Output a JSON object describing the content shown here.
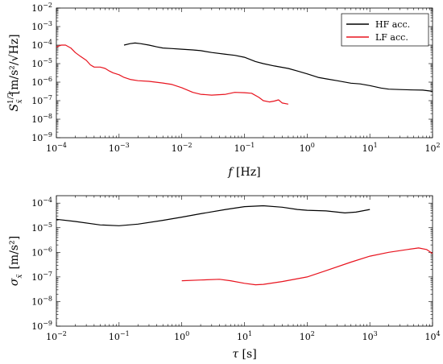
{
  "chart_data": [
    {
      "type": "line",
      "xscale": "log",
      "yscale": "log",
      "xlim": [
        0.0001,
        100
      ],
      "ylim": [
        1e-09,
        0.01
      ],
      "xlabel_var": "f",
      "xlabel_unit": "[Hz]",
      "ylabel_var": "S",
      "ylabel_sup": "1/2",
      "ylabel_sub": "ẍ",
      "ylabel_unit": "[m/s²/√Hz]",
      "x_ticks": [
        {
          "v": 0.0001,
          "base": "10",
          "exp": "−4"
        },
        {
          "v": 0.001,
          "base": "10",
          "exp": "−3"
        },
        {
          "v": 0.01,
          "base": "10",
          "exp": "−2"
        },
        {
          "v": 0.1,
          "base": "10",
          "exp": "−1"
        },
        {
          "v": 1,
          "base": "10",
          "exp": "0"
        },
        {
          "v": 10,
          "base": "10",
          "exp": "1"
        },
        {
          "v": 100,
          "base": "10",
          "exp": "2"
        }
      ],
      "y_ticks": [
        {
          "v": 1e-09,
          "base": "10",
          "exp": "−9"
        },
        {
          "v": 1e-08,
          "base": "10",
          "exp": "−8"
        },
        {
          "v": 1e-07,
          "base": "10",
          "exp": "−7"
        },
        {
          "v": 1e-06,
          "base": "10",
          "exp": "−6"
        },
        {
          "v": 1e-05,
          "base": "10",
          "exp": "−5"
        },
        {
          "v": 0.0001,
          "base": "10",
          "exp": "−4"
        },
        {
          "v": 0.001,
          "base": "10",
          "exp": "−3"
        },
        {
          "v": 0.01,
          "base": "10",
          "exp": "−2"
        }
      ],
      "legend": {
        "position": "top-right",
        "entries": [
          "HF acc.",
          "LF acc."
        ]
      },
      "series": [
        {
          "name": "HF acc.",
          "color": "#000000",
          "x": [
            0.0012,
            0.0015,
            0.0018,
            0.0022,
            0.003,
            0.004,
            0.005,
            0.007,
            0.01,
            0.015,
            0.02,
            0.03,
            0.05,
            0.07,
            0.1,
            0.15,
            0.2,
            0.3,
            0.5,
            0.7,
            1,
            1.5,
            2,
            3,
            5,
            7,
            10,
            15,
            20,
            30,
            50,
            70,
            100
          ],
          "y": [
            0.0001,
            0.00012,
            0.00013,
            0.00012,
            0.0001,
            8e-05,
            7e-05,
            6.5e-05,
            6e-05,
            5.5e-05,
            5e-05,
            4e-05,
            3.2e-05,
            2.8e-05,
            2.2e-05,
            1.3e-05,
            1e-05,
            7.5e-06,
            5.5e-06,
            4e-06,
            2.8e-06,
            1.8e-06,
            1.5e-06,
            1.2e-06,
            8.8e-07,
            8e-07,
            6.5e-07,
            4.8e-07,
            4.2e-07,
            4e-07,
            3.8e-07,
            3.7e-07,
            3.2e-07
          ]
        },
        {
          "name": "LF acc.",
          "color": "#e8131e",
          "x": [
            0.0001,
            0.00012,
            0.00014,
            0.00017,
            0.0002,
            0.00024,
            0.0003,
            0.00035,
            0.0004,
            0.0005,
            0.0006,
            0.0007,
            0.0008,
            0.001,
            0.0012,
            0.0015,
            0.002,
            0.003,
            0.005,
            0.007,
            0.01,
            0.015,
            0.02,
            0.03,
            0.05,
            0.07,
            0.1,
            0.13,
            0.17,
            0.2,
            0.25,
            0.3,
            0.35,
            0.4,
            0.5
          ],
          "y": [
            8e-05,
            0.0001,
            0.0001,
            7e-05,
            4e-05,
            2.5e-05,
            1.5e-05,
            8.5e-06,
            6.5e-06,
            6.5e-06,
            5.5e-06,
            4e-06,
            3.2e-06,
            2.5e-06,
            1.8e-06,
            1.4e-06,
            1.2e-06,
            1.1e-06,
            9e-07,
            7.5e-07,
            5e-07,
            2.8e-07,
            2.2e-07,
            2e-07,
            2.2e-07,
            2.8e-07,
            2.7e-07,
            2.5e-07,
            1.5e-07,
            1e-07,
            8.5e-08,
            9.5e-08,
            1.1e-07,
            7.5e-08,
            6.5e-08
          ]
        }
      ]
    },
    {
      "type": "line",
      "xscale": "log",
      "yscale": "log",
      "xlim": [
        0.01,
        10000
      ],
      "ylim": [
        1e-09,
        0.0002
      ],
      "xlabel_var": "τ",
      "xlabel_unit": "[s]",
      "ylabel_var": "σ",
      "ylabel_sub": "ẍ",
      "ylabel_unit": "[m/s²]",
      "x_ticks": [
        {
          "v": 0.01,
          "base": "10",
          "exp": "−2"
        },
        {
          "v": 0.1,
          "base": "10",
          "exp": "−1"
        },
        {
          "v": 1,
          "base": "10",
          "exp": "0"
        },
        {
          "v": 10,
          "base": "10",
          "exp": "1"
        },
        {
          "v": 100,
          "base": "10",
          "exp": "2"
        },
        {
          "v": 1000,
          "base": "10",
          "exp": "3"
        },
        {
          "v": 10000,
          "base": "10",
          "exp": "4"
        }
      ],
      "y_ticks": [
        {
          "v": 1e-09,
          "base": "10",
          "exp": "−9"
        },
        {
          "v": 1e-08,
          "base": "10",
          "exp": "−8"
        },
        {
          "v": 1e-07,
          "base": "10",
          "exp": "−7"
        },
        {
          "v": 1e-06,
          "base": "10",
          "exp": "−6"
        },
        {
          "v": 1e-05,
          "base": "10",
          "exp": "−5"
        },
        {
          "v": 0.0001,
          "base": "10",
          "exp": "−4"
        }
      ],
      "series": [
        {
          "name": "HF acc.",
          "color": "#000000",
          "x": [
            0.01,
            0.02,
            0.05,
            0.1,
            0.2,
            0.5,
            1,
            2,
            5,
            10,
            20,
            40,
            70,
            100,
            200,
            400,
            600,
            1000
          ],
          "y": [
            2.2e-05,
            1.8e-05,
            1.3e-05,
            1.2e-05,
            1.4e-05,
            2e-05,
            2.7e-05,
            3.7e-05,
            5.5e-05,
            7.2e-05,
            7.8e-05,
            6.8e-05,
            5.5e-05,
            5.1e-05,
            4.8e-05,
            4e-05,
            4.3e-05,
            5.5e-05
          ]
        },
        {
          "name": "LF acc.",
          "color": "#e8131e",
          "x": [
            1,
            2,
            4,
            6,
            10,
            15,
            20,
            40,
            100,
            200,
            500,
            1000,
            2000,
            4000,
            6000,
            8000,
            10000
          ],
          "y": [
            7e-08,
            7.5e-08,
            8e-08,
            7e-08,
            5.5e-08,
            4.8e-08,
            5e-08,
            6.5e-08,
            1e-07,
            1.8e-07,
            4e-07,
            7e-07,
            1e-06,
            1.3e-06,
            1.5e-06,
            1.3e-06,
            9e-07
          ]
        }
      ]
    }
  ]
}
